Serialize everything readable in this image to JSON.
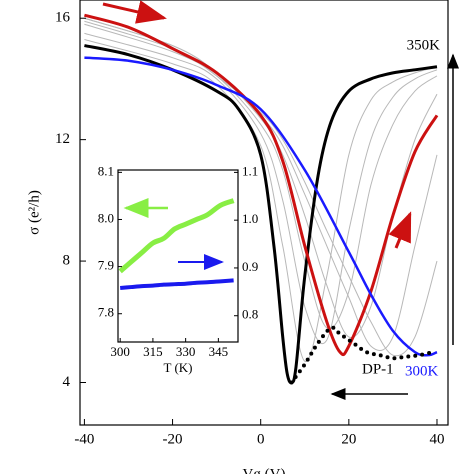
{
  "chart_data": [
    {
      "type": "line",
      "xlabel": "Vg (V)",
      "ylabel": "σ (e²/h)",
      "xlim": [
        -41,
        42.5
      ],
      "ylim": [
        2.6,
        16.6
      ],
      "xticks": [
        -40,
        -20,
        0,
        20,
        40
      ],
      "yticks": [
        4,
        8,
        12,
        16
      ],
      "annotations": [
        "350K",
        "300K",
        "DP-1"
      ],
      "series": [
        {
          "color": "#b8b8b8",
          "x": [
            -40,
            -20,
            -10,
            0,
            5,
            10,
            15,
            20,
            25,
            30,
            35,
            40
          ],
          "values": [
            15.3,
            14.5,
            13.8,
            11.8,
            8.5,
            4.7,
            7.5,
            11.5,
            13.3,
            13.9,
            14.2,
            14.4
          ]
        },
        {
          "color": "#b8b8b8",
          "x": [
            -40,
            -20,
            -10,
            0,
            5,
            10,
            15,
            20,
            25,
            30,
            35,
            40
          ],
          "values": [
            15.5,
            14.7,
            14.0,
            12.2,
            10.0,
            6.5,
            5.4,
            9.0,
            12.0,
            13.4,
            14.0,
            14.3
          ]
        },
        {
          "color": "#b8b8b8",
          "x": [
            -40,
            -20,
            -10,
            0,
            5,
            10,
            15,
            20,
            25,
            30,
            35,
            40
          ],
          "values": [
            15.8,
            14.9,
            14.1,
            12.5,
            11.0,
            8.0,
            5.8,
            7.0,
            10.5,
            12.5,
            13.6,
            14.1
          ]
        },
        {
          "color": "#b8b8b8",
          "x": [
            -40,
            -20,
            -10,
            0,
            5,
            10,
            15,
            20,
            25,
            30,
            35,
            40
          ],
          "values": [
            16.0,
            15.1,
            14.2,
            12.7,
            11.5,
            9.5,
            7.2,
            5.5,
            6.5,
            9.5,
            12.0,
            13.5
          ]
        },
        {
          "color": "#b8b8b8",
          "x": [
            -40,
            -20,
            -10,
            0,
            5,
            10,
            15,
            20,
            25,
            30,
            35,
            40
          ],
          "values": [
            16.0,
            15.1,
            14.2,
            12.8,
            11.8,
            10.2,
            8.5,
            6.8,
            5.2,
            5.5,
            8.5,
            11.5
          ]
        },
        {
          "color": "#b8b8b8",
          "x": [
            -40,
            -20,
            -10,
            0,
            5,
            10,
            15,
            20,
            25,
            30,
            35,
            40
          ],
          "values": [
            15.9,
            15.0,
            14.1,
            12.9,
            12.0,
            10.6,
            9.0,
            7.5,
            6.0,
            4.9,
            5.5,
            8.0
          ]
        },
        {
          "color": "#000000",
          "width": 3,
          "x": [
            -40,
            -30,
            -20,
            -10,
            -5,
            0,
            3,
            5,
            6,
            7,
            8,
            10,
            13,
            16,
            20,
            25,
            30,
            35,
            40
          ],
          "values": [
            15.1,
            14.8,
            14.3,
            13.6,
            13.0,
            11.5,
            8.5,
            5.5,
            4.3,
            4.0,
            4.5,
            7.5,
            10.8,
            12.6,
            13.6,
            14.0,
            14.2,
            14.3,
            14.4
          ]
        },
        {
          "color": "#cc1111",
          "width": 3,
          "x": [
            -40,
            -30,
            -20,
            -10,
            0,
            5,
            10,
            15,
            18,
            20,
            25,
            30,
            35,
            40
          ],
          "values": [
            16.1,
            15.7,
            15.0,
            14.2,
            12.8,
            11.3,
            8.5,
            6.0,
            5.0,
            5.2,
            7.0,
            9.5,
            11.6,
            12.8
          ]
        },
        {
          "color": "#1a1aff",
          "width": 2.5,
          "x": [
            -40,
            -30,
            -20,
            -10,
            0,
            10,
            20,
            25,
            30,
            35,
            38,
            40
          ],
          "values": [
            14.7,
            14.6,
            14.3,
            13.8,
            13.0,
            11.0,
            8.3,
            6.9,
            5.7,
            5.0,
            4.9,
            5.0
          ]
        },
        {
          "color": "#000000",
          "width": 4,
          "style": "dotted",
          "x": [
            7,
            10,
            13,
            16,
            18,
            21,
            24,
            27,
            30,
            33,
            36,
            39
          ],
          "values": [
            4.0,
            4.6,
            5.3,
            5.8,
            5.6,
            5.3,
            5.0,
            4.9,
            4.8,
            4.85,
            4.9,
            5.0
          ]
        }
      ]
    },
    {
      "type": "line",
      "xlabel": "T (K)",
      "xlim": [
        299,
        354
      ],
      "ylim": [
        7.74,
        8.105
      ],
      "y2lim": [
        0.745,
        1.105
      ],
      "xticks": [
        300,
        315,
        330,
        345
      ],
      "yticks": [
        7.8,
        7.9,
        {
          "value": 8,
          "label": "8.0"
        },
        8.1
      ],
      "y2ticks": [
        0.8,
        0.9,
        {
          "value": 1,
          "label": "1.0"
        },
        1.1
      ],
      "series": [
        {
          "color": "#88ee44",
          "width": 5,
          "x": [
            300,
            305,
            310,
            315,
            320,
            325,
            330,
            335,
            340,
            346,
            352
          ],
          "values": [
            7.89,
            7.91,
            7.93,
            7.95,
            7.96,
            7.98,
            7.99,
            8.0,
            8.01,
            8.03,
            8.04
          ]
        },
        {
          "color": "#1a1aee",
          "width": 4,
          "axis": "y2",
          "x": [
            300,
            305,
            310,
            315,
            320,
            325,
            330,
            335,
            340,
            346,
            352
          ],
          "values": [
            0.858,
            0.86,
            0.862,
            0.863,
            0.865,
            0.866,
            0.867,
            0.869,
            0.87,
            0.872,
            0.874
          ]
        }
      ]
    }
  ]
}
